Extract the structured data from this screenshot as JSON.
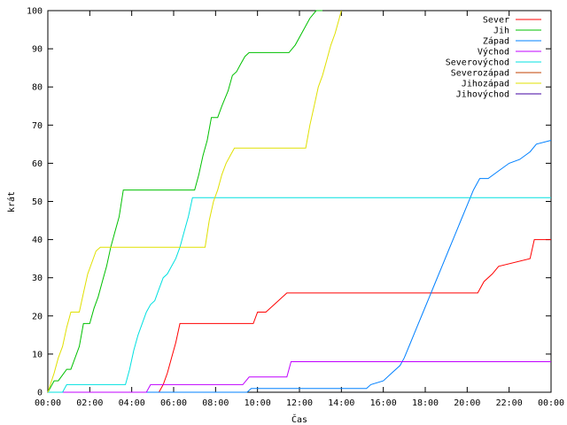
{
  "chart_data": {
    "type": "line",
    "title": "",
    "xlabel": "Čas",
    "ylabel": "krát",
    "xlim": [
      0,
      24
    ],
    "ylim": [
      0,
      100
    ],
    "x_ticks": [
      {
        "value": 0,
        "label": "00:00"
      },
      {
        "value": 2,
        "label": "02:00"
      },
      {
        "value": 4,
        "label": "04:00"
      },
      {
        "value": 6,
        "label": "06:00"
      },
      {
        "value": 8,
        "label": "08:00"
      },
      {
        "value": 10,
        "label": "10:00"
      },
      {
        "value": 12,
        "label": "12:00"
      },
      {
        "value": 14,
        "label": "14:00"
      },
      {
        "value": 16,
        "label": "16:00"
      },
      {
        "value": 18,
        "label": "18:00"
      },
      {
        "value": 20,
        "label": "20:00"
      },
      {
        "value": 22,
        "label": "22:00"
      },
      {
        "value": 24,
        "label": "00:00"
      }
    ],
    "y_ticks": [
      0,
      10,
      20,
      30,
      40,
      50,
      60,
      70,
      80,
      90,
      100
    ],
    "grid": false,
    "legend_position": "top-right",
    "series": [
      {
        "name": "Sever",
        "color": "#ff0000",
        "x": [
          0,
          5.3,
          5.5,
          5.7,
          5.9,
          6.1,
          6.3,
          9.8,
          10,
          10.4,
          10.8,
          11.4,
          20.5,
          20.8,
          21.2,
          21.5,
          23,
          23.2,
          24
        ],
        "y": [
          0,
          0,
          2,
          5,
          9,
          13,
          18,
          18,
          21,
          21,
          23,
          26,
          26,
          29,
          31,
          33,
          35,
          40,
          40
        ]
      },
      {
        "name": "Jih",
        "color": "#00c000",
        "x": [
          0,
          0.3,
          0.5,
          0.9,
          1,
          1.1,
          1.5,
          1.7,
          2,
          2.2,
          2.4,
          2.6,
          2.8,
          3,
          3.2,
          3.4,
          3.6,
          7,
          7.2,
          7.4,
          7.6,
          7.8,
          8.1,
          8.3,
          8.6,
          8.8,
          9,
          9.2,
          9.4,
          9.6,
          9.8,
          10,
          10.3,
          10.5,
          11,
          11.5,
          11.8,
          12.2,
          12.5,
          12.8,
          13,
          13.1
        ],
        "y": [
          0,
          3,
          3,
          6,
          6,
          6,
          12,
          18,
          18,
          22,
          25,
          29,
          33,
          38,
          42,
          46,
          53,
          53,
          57,
          62,
          66,
          72,
          72,
          75,
          79,
          83,
          84,
          86,
          88,
          89,
          89,
          89,
          89,
          89,
          89,
          89,
          91,
          95,
          98,
          100,
          100,
          100
        ]
      },
      {
        "name": "Západ",
        "color": "#0080ff",
        "x": [
          0,
          9.5,
          9.7,
          15.2,
          15.4,
          16,
          16.4,
          16.8,
          17,
          17.3,
          17.6,
          17.9,
          18.2,
          18.5,
          18.8,
          19.1,
          19.4,
          19.7,
          20,
          20.3,
          20.6,
          21,
          21.5,
          22,
          22.5,
          23,
          23.3,
          24
        ],
        "y": [
          0,
          0,
          1,
          1,
          2,
          3,
          5,
          7,
          9,
          13,
          17,
          21,
          25,
          29,
          33,
          37,
          41,
          45,
          49,
          53,
          56,
          56,
          58,
          60,
          61,
          63,
          65,
          66
        ]
      },
      {
        "name": "Východ",
        "color": "#c000ff",
        "x": [
          0,
          4.7,
          4.9,
          9.3,
          9.6,
          11.4,
          11.6,
          24
        ],
        "y": [
          0,
          0,
          2,
          2,
          4,
          4,
          8,
          8
        ]
      },
      {
        "name": "Severovýchod",
        "color": "#00e0e0",
        "x": [
          0,
          0.7,
          0.9,
          3.7,
          3.9,
          4.1,
          4.3,
          4.5,
          4.7,
          4.9,
          5.1,
          5.3,
          5.5,
          5.7,
          5.9,
          6.1,
          6.3,
          6.5,
          6.7,
          6.9,
          7.1,
          24
        ],
        "y": [
          0,
          0,
          2,
          2,
          6,
          11,
          15,
          18,
          21,
          23,
          24,
          27,
          30,
          31,
          33,
          35,
          38,
          42,
          46,
          51,
          51,
          51
        ]
      },
      {
        "name": "Severozápad",
        "color": "#c04000",
        "x": [],
        "y": []
      },
      {
        "name": "Jihozápad",
        "color": "#e0e000",
        "x": [
          0,
          0.3,
          0.5,
          0.7,
          0.9,
          1.1,
          1.3,
          1.5,
          1.7,
          1.9,
          2.1,
          2.3,
          2.5,
          2.7,
          2.9,
          3.1,
          3.3,
          3.5,
          3.7,
          3.9,
          4.1,
          7.5,
          7.7,
          7.9,
          8.1,
          8.3,
          8.5,
          8.7,
          8.9,
          9.1,
          12.3,
          12.5,
          12.7,
          12.9,
          13.1,
          13.3,
          13.5,
          13.7,
          13.9,
          14
        ],
        "y": [
          0,
          5,
          9,
          12,
          17,
          21,
          21,
          21,
          26,
          31,
          34,
          37,
          38,
          38,
          38,
          38,
          38,
          38,
          38,
          38,
          38,
          38,
          45,
          50,
          53,
          57,
          60,
          62,
          64,
          64,
          64,
          70,
          75,
          80,
          83,
          87,
          91,
          94,
          98,
          100
        ]
      },
      {
        "name": "Jihovýchod",
        "color": "#4000a0",
        "x": [],
        "y": []
      }
    ]
  }
}
